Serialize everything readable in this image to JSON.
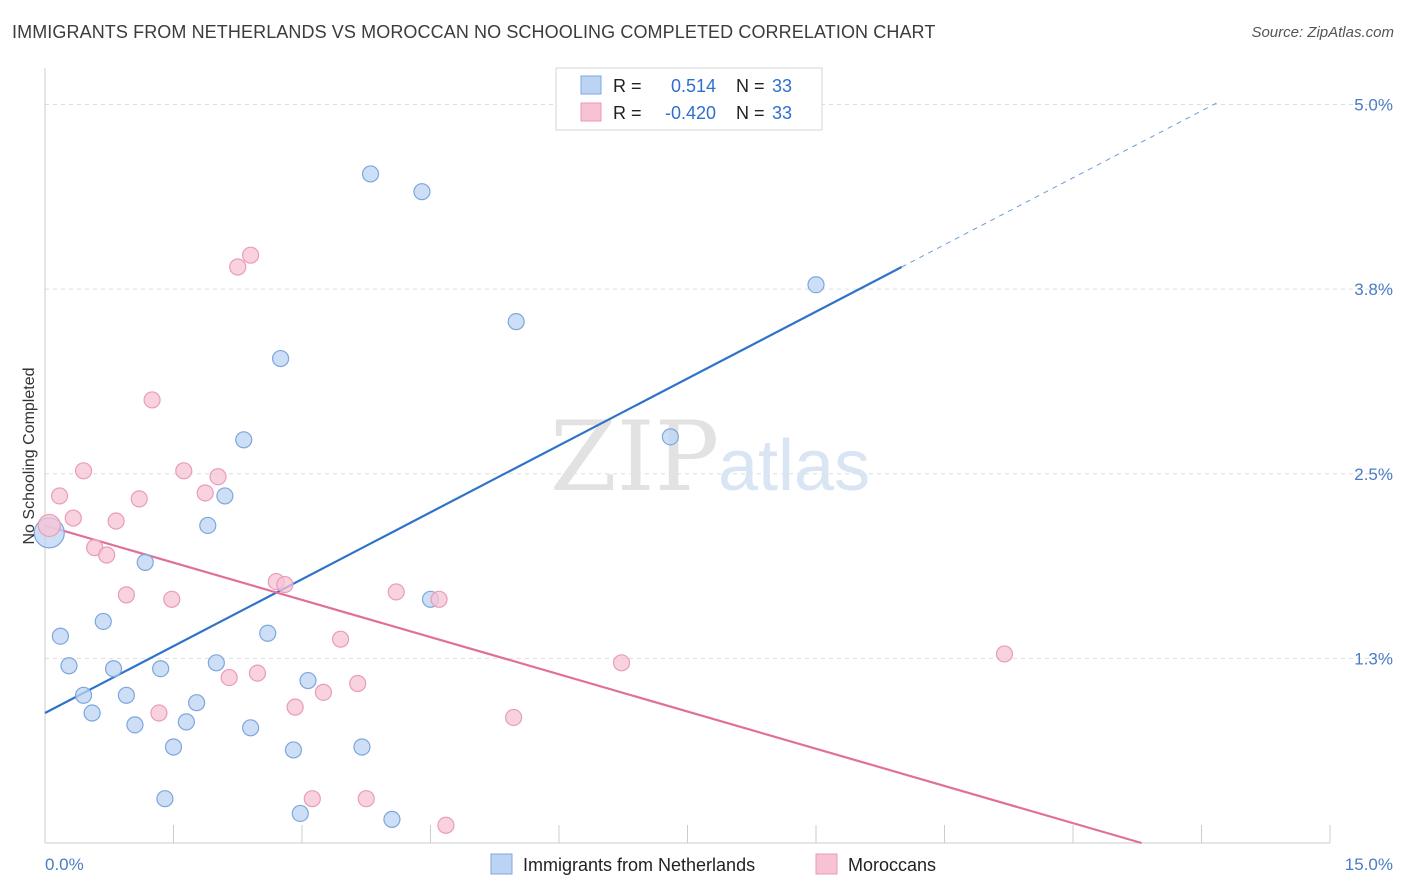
{
  "title": "IMMIGRANTS FROM NETHERLANDS VS MOROCCAN NO SCHOOLING COMPLETED CORRELATION CHART",
  "source": "Source: ZipAtlas.com",
  "watermark": {
    "zip": "ZIP",
    "atlas": "atlas"
  },
  "colors": {
    "blue": "#2f72c9",
    "blue_fill": "#bcd4f3",
    "pink": "#e0709a",
    "pink_fill": "#f7c3d4",
    "tick": "#4a7cc4"
  },
  "legend": {
    "r_label": "R =",
    "n_label": "N =",
    "rows": [
      {
        "r": "0.514",
        "n": "33"
      },
      {
        "r": "-0.420",
        "n": "33"
      }
    ]
  },
  "chart_data": {
    "type": "scatter",
    "xlabel": "",
    "ylabel": "No Schooling Completed",
    "xlim": [
      0,
      15
    ],
    "ylim": [
      0,
      5.2
    ],
    "x_tick_labels": [
      {
        "value": 0,
        "label": "0.0%"
      },
      {
        "value": 15,
        "label": "15.0%"
      }
    ],
    "y_tick_labels": [
      {
        "value": 1.25,
        "label": "1.3%"
      },
      {
        "value": 2.5,
        "label": "2.5%"
      },
      {
        "value": 3.75,
        "label": "3.8%"
      },
      {
        "value": 5.0,
        "label": "5.0%"
      }
    ],
    "series": [
      {
        "name": "Immigrants from Netherlands",
        "color": "#2f72c9",
        "trend": {
          "x0": 0,
          "y0": 0.88,
          "x1": 10.0,
          "y1": 3.9,
          "dashed_to_x": 13.7
        },
        "points": [
          [
            0.05,
            2.1
          ],
          [
            0.18,
            1.4
          ],
          [
            0.28,
            1.2
          ],
          [
            0.45,
            1.0
          ],
          [
            0.55,
            0.88
          ],
          [
            0.68,
            1.5
          ],
          [
            0.8,
            1.18
          ],
          [
            0.95,
            1.0
          ],
          [
            1.05,
            0.8
          ],
          [
            1.17,
            1.9
          ],
          [
            1.35,
            1.18
          ],
          [
            1.4,
            0.3
          ],
          [
            1.5,
            0.65
          ],
          [
            1.65,
            0.82
          ],
          [
            1.77,
            0.95
          ],
          [
            1.9,
            2.15
          ],
          [
            2.0,
            1.22
          ],
          [
            2.1,
            2.35
          ],
          [
            2.32,
            2.73
          ],
          [
            2.4,
            0.78
          ],
          [
            2.6,
            1.42
          ],
          [
            2.75,
            3.28
          ],
          [
            2.9,
            0.63
          ],
          [
            2.98,
            0.2
          ],
          [
            3.07,
            1.1
          ],
          [
            3.7,
            0.65
          ],
          [
            3.8,
            4.53
          ],
          [
            4.05,
            0.16
          ],
          [
            4.4,
            4.41
          ],
          [
            4.5,
            1.65
          ],
          [
            5.5,
            3.53
          ],
          [
            7.3,
            2.75
          ],
          [
            9.0,
            3.78
          ]
        ]
      },
      {
        "name": "Moroccans",
        "color": "#e0709a",
        "trend": {
          "x0": 0,
          "y0": 2.15,
          "x1": 12.8,
          "y1": 0.0
        },
        "points": [
          [
            0.05,
            2.15
          ],
          [
            0.17,
            2.35
          ],
          [
            0.33,
            2.2
          ],
          [
            0.45,
            2.52
          ],
          [
            0.58,
            2.0
          ],
          [
            0.72,
            1.95
          ],
          [
            0.83,
            2.18
          ],
          [
            0.95,
            1.68
          ],
          [
            1.1,
            2.33
          ],
          [
            1.25,
            3.0
          ],
          [
            1.33,
            0.88
          ],
          [
            1.48,
            1.65
          ],
          [
            1.62,
            2.52
          ],
          [
            1.87,
            2.37
          ],
          [
            2.02,
            2.48
          ],
          [
            2.15,
            1.12
          ],
          [
            2.25,
            3.9
          ],
          [
            2.4,
            3.98
          ],
          [
            2.48,
            1.15
          ],
          [
            2.7,
            1.77
          ],
          [
            2.8,
            1.75
          ],
          [
            2.92,
            0.92
          ],
          [
            3.12,
            0.3
          ],
          [
            3.25,
            1.02
          ],
          [
            3.45,
            1.38
          ],
          [
            3.65,
            1.08
          ],
          [
            3.75,
            0.3
          ],
          [
            4.1,
            1.7
          ],
          [
            4.6,
            1.65
          ],
          [
            4.68,
            0.12
          ],
          [
            5.47,
            0.85
          ],
          [
            6.73,
            1.22
          ],
          [
            11.2,
            1.28
          ]
        ]
      }
    ],
    "grid": true,
    "legend_position": "top-center"
  }
}
